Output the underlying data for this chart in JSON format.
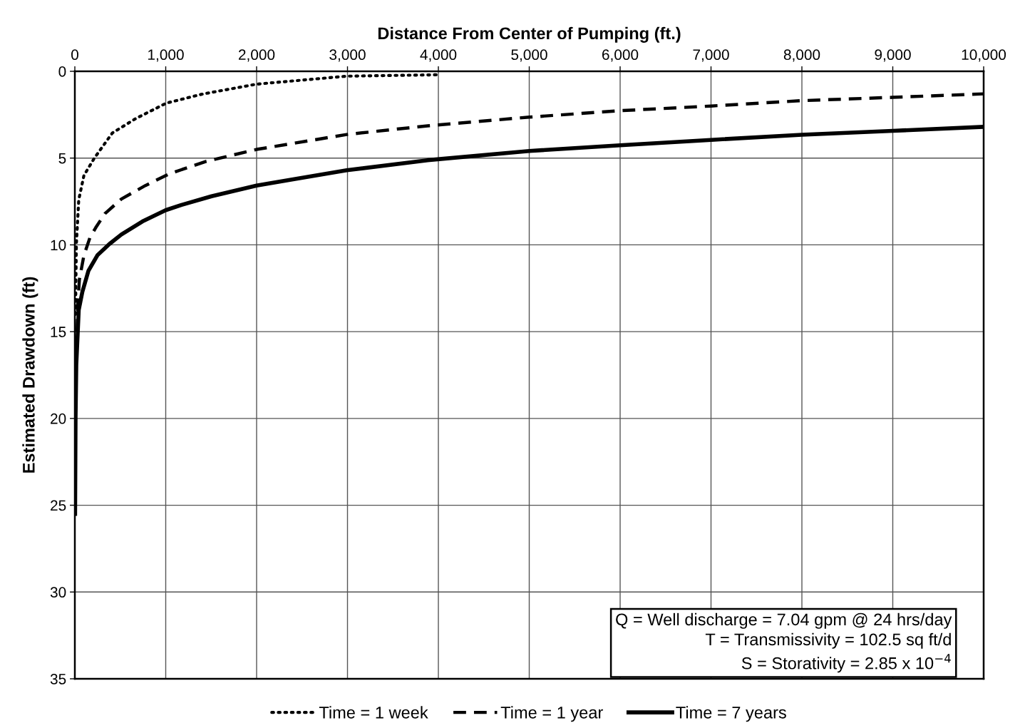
{
  "chart_data": {
    "type": "line",
    "xlabel": "Distance From Center of Pumping (ft.)",
    "ylabel": "Estimated Drawdown (ft)",
    "xlim": [
      0,
      10000
    ],
    "xticks": [
      0,
      {
        "value": 1000,
        "label": "1,000"
      },
      {
        "value": 2000,
        "label": "2,000"
      },
      {
        "value": 3000,
        "label": "3,000"
      },
      {
        "value": 4000,
        "label": "4,000"
      },
      {
        "value": 5000,
        "label": "5,000"
      },
      {
        "value": 6000,
        "label": "6,000"
      },
      {
        "value": 7000,
        "label": "7,000"
      },
      {
        "value": 8000,
        "label": "8,000"
      },
      {
        "value": 9000,
        "label": "9,000"
      },
      {
        "value": 10000,
        "label": "10,000"
      }
    ],
    "ylim": [
      35,
      0
    ],
    "yticks": [
      0,
      5,
      10,
      15,
      20,
      25,
      30,
      35
    ],
    "grid": true,
    "legend": "bottom",
    "marker": "none",
    "series": [
      {
        "name": "Time = 1 week",
        "color": "#000000",
        "line_style": "dotted",
        "x": [
          8,
          12,
          17,
          43,
          100,
          215,
          413,
          678,
          1008,
          1405,
          2000,
          2992,
          4000
        ],
        "values": [
          14.0,
          12.0,
          9.95,
          7.4,
          6.0,
          5.0,
          3.55,
          2.7,
          1.83,
          1.31,
          0.74,
          0.28,
          0.2
        ]
      },
      {
        "name": "Time = 1 year",
        "color": "#000000",
        "line_style": "dashed",
        "x": [
          25,
          33,
          50,
          100,
          165,
          231,
          331,
          512,
          777,
          1041,
          1438,
          2000,
          2992,
          3882,
          5000,
          6000,
          7000,
          8000,
          9000,
          10000
        ],
        "values": [
          15.0,
          13.4,
          12.0,
          10.6,
          9.6,
          9.0,
          8.2,
          7.36,
          6.58,
          5.9,
          5.2,
          4.5,
          3.64,
          3.14,
          2.64,
          2.27,
          2.0,
          1.69,
          1.5,
          1.3
        ]
      },
      {
        "name": "Time = 7 years",
        "color": "#000000",
        "line_style": "solid",
        "x": [
          3,
          8,
          16,
          43,
          83,
          149,
          248,
          380,
          512,
          744,
          1000,
          1174,
          1504,
          2000,
          2992,
          3882,
          5000,
          6000,
          7000,
          8000,
          9000,
          10000
        ],
        "values": [
          25.5,
          20.0,
          16.9,
          13.75,
          12.7,
          11.5,
          10.6,
          9.95,
          9.4,
          8.65,
          8.0,
          7.7,
          7.2,
          6.58,
          5.7,
          5.12,
          4.59,
          4.26,
          3.95,
          3.66,
          3.43,
          3.2
        ]
      }
    ],
    "annotations": [
      "Q = Well discharge = 7.04 gpm @ 24 hrs/day\nT = Transmissivity = 102.5 sq ft/d\nS = Storativity = 2.85 x 10$^{−4}$"
    ]
  }
}
